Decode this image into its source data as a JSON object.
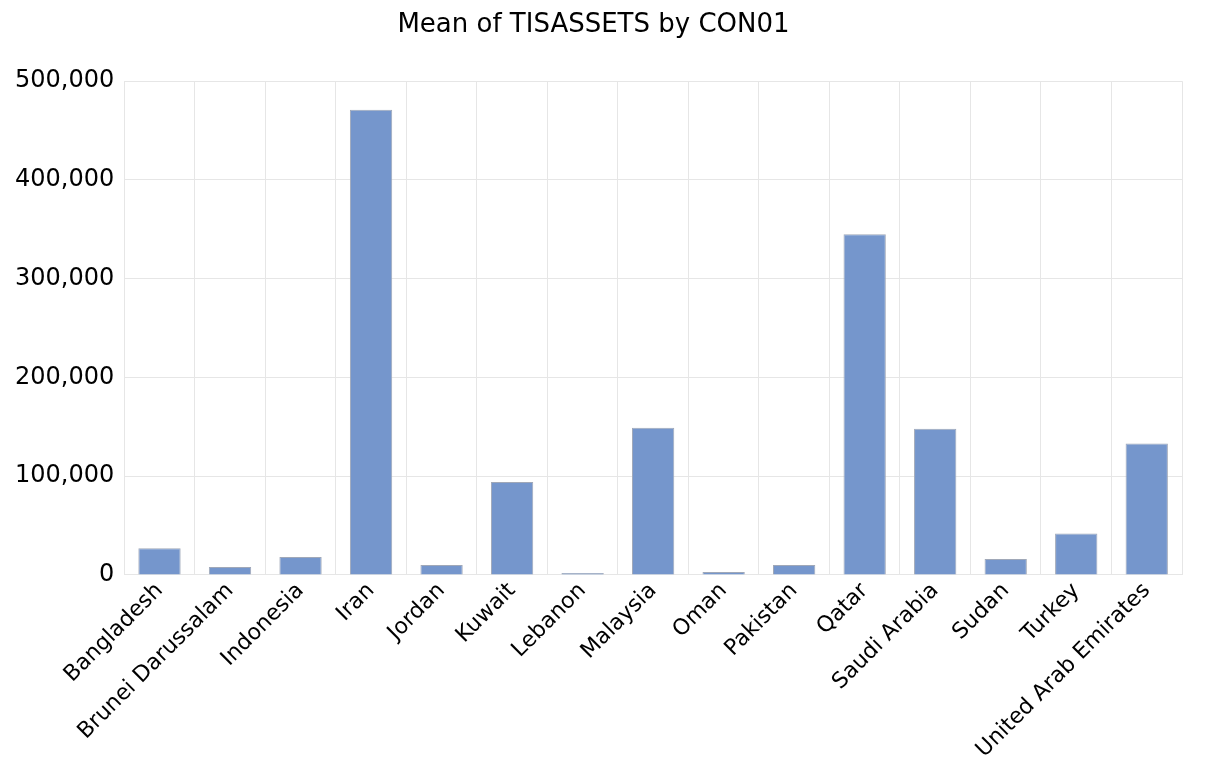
{
  "chart_data": {
    "type": "bar",
    "title": "Mean of TISASSETS by CON01",
    "categories": [
      "Bangladesh",
      "Brunei Darussalam",
      "Indonesia",
      "Iran",
      "Jordan",
      "Kuwait",
      "Lebanon",
      "Malaysia",
      "Oman",
      "Pakistan",
      "Qatar",
      "Saudi Arabia",
      "Sudan",
      "Turkey",
      "United Arab Emirates"
    ],
    "values": [
      27000,
      8000,
      18000,
      471000,
      10000,
      94000,
      2000,
      149000,
      3000,
      10000,
      345000,
      148000,
      16000,
      42000,
      133000
    ],
    "color": "#7596cc",
    "ylim": [
      0,
      500000
    ],
    "yticks": [
      {
        "value": 0,
        "label": "0"
      },
      {
        "value": 100000,
        "label": "100,000"
      },
      {
        "value": 200000,
        "label": "200,000"
      },
      {
        "value": 300000,
        "label": "300,000"
      },
      {
        "value": 400000,
        "label": "400,000"
      },
      {
        "value": 500000,
        "label": "500,000"
      }
    ],
    "grid": true,
    "legend": false
  }
}
